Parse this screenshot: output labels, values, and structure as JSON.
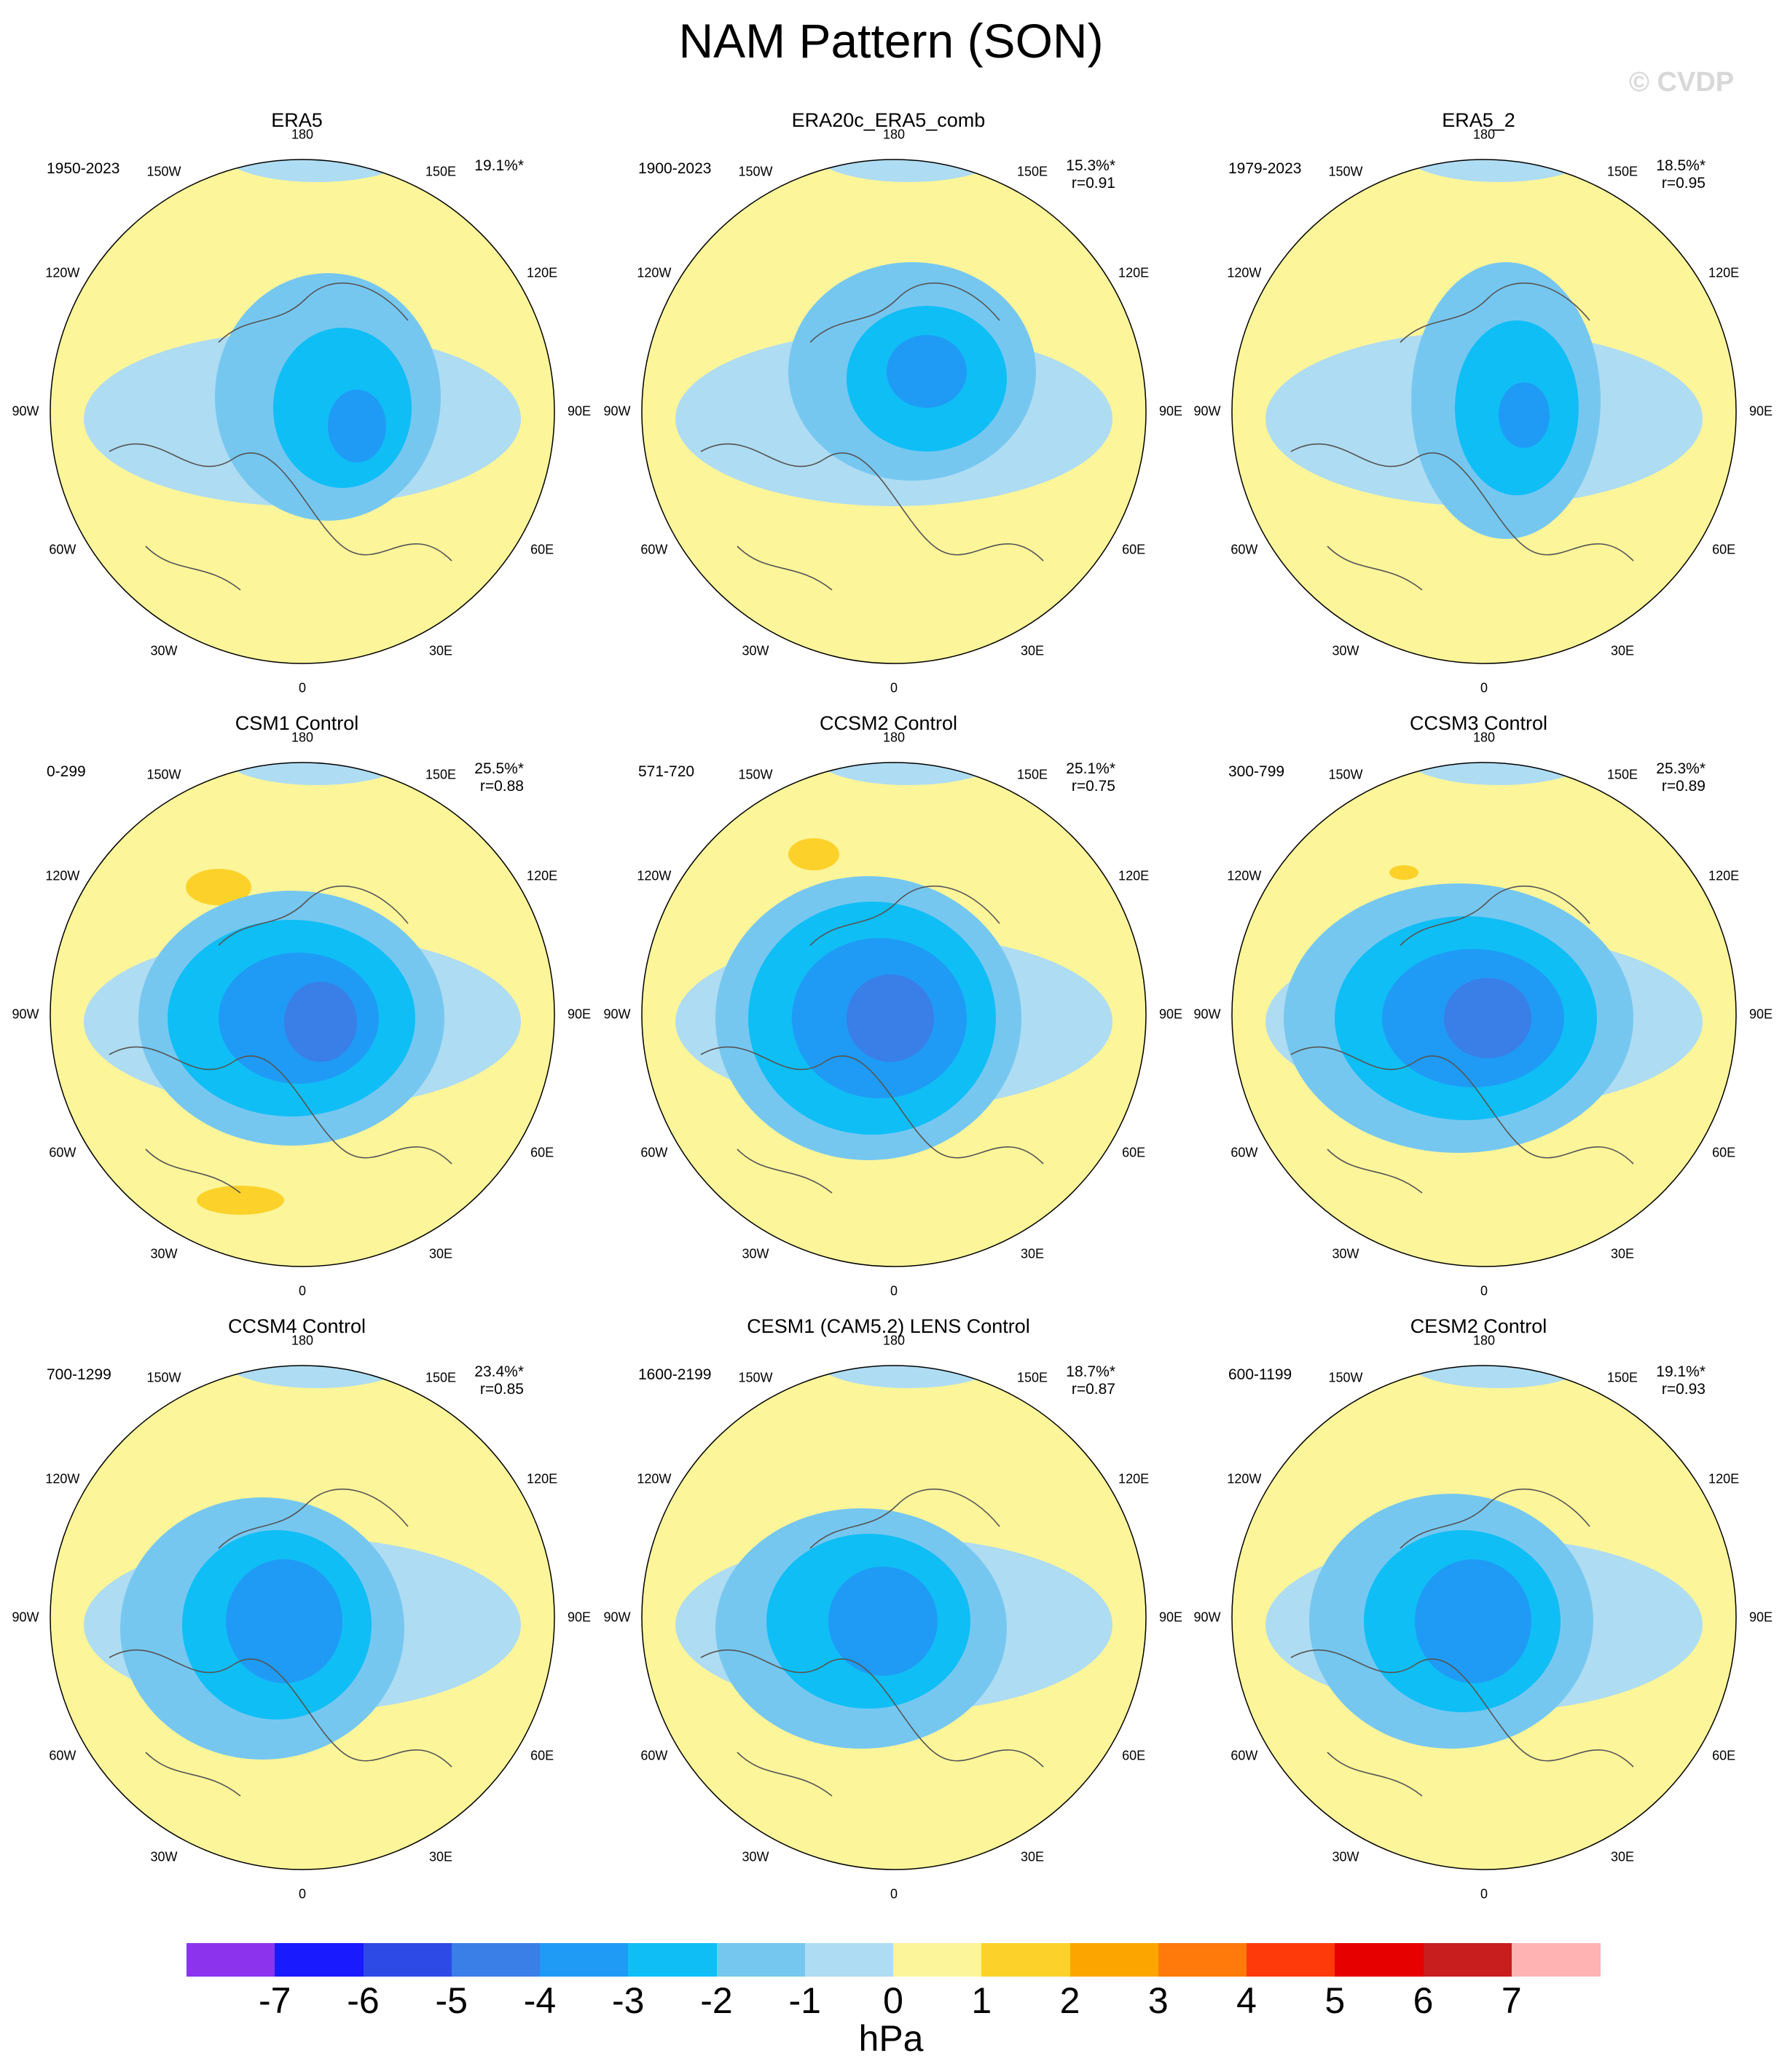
{
  "title": "NAM Pattern (SON)",
  "watermark": "© CVDP",
  "units": "hPa",
  "colors": {
    "ocean_negative": "#aedcf2",
    "land_positive": "#fcf59a",
    "coast": "#555555"
  },
  "longitude_labels": [
    "180",
    "150E",
    "120E",
    "90E",
    "60E",
    "30E",
    "0",
    "30W",
    "60W",
    "90W",
    "120W",
    "150W"
  ],
  "panels": [
    {
      "title": "ERA5",
      "years": "1950-2023",
      "pct": "19.1%*",
      "r": ""
    },
    {
      "title": "ERA20c_ERA5_comb",
      "years": "1900-2023",
      "pct": "15.3%*",
      "r": "r=0.91"
    },
    {
      "title": "ERA5_2",
      "years": "1979-2023",
      "pct": "18.5%*",
      "r": "r=0.95"
    },
    {
      "title": "CSM1 Control",
      "years": "0-299",
      "pct": "25.5%*",
      "r": "r=0.88"
    },
    {
      "title": "CCSM2 Control",
      "years": "571-720",
      "pct": "25.1%*",
      "r": "r=0.75"
    },
    {
      "title": "CCSM3 Control",
      "years": "300-799",
      "pct": "25.3%*",
      "r": "r=0.89"
    },
    {
      "title": "CCSM4 Control",
      "years": "700-1299",
      "pct": "23.4%*",
      "r": "r=0.85"
    },
    {
      "title": "CESM1 (CAM5.2) LENS Control",
      "years": "1600-2199",
      "pct": "18.7%*",
      "r": "r=0.87"
    },
    {
      "title": "CESM2 Control",
      "years": "600-1199",
      "pct": "19.1%*",
      "r": "r=0.93"
    }
  ],
  "colorbar": {
    "labels": [
      "-7",
      "-6",
      "-5",
      "-4",
      "-3",
      "-2",
      "-1",
      "0",
      "1",
      "2",
      "3",
      "4",
      "5",
      "6",
      "7"
    ],
    "colors": [
      "#8c33ee",
      "#1a1aff",
      "#2d4ae6",
      "#3a7ee8",
      "#1f9bf5",
      "#0fbef5",
      "#76c7f0",
      "#aedcf2",
      "#fcf59a",
      "#fcd22a",
      "#fca500",
      "#ff7a0a",
      "#ff3a0a",
      "#e60000",
      "#c81e1e",
      "#ffb3b3"
    ]
  }
}
